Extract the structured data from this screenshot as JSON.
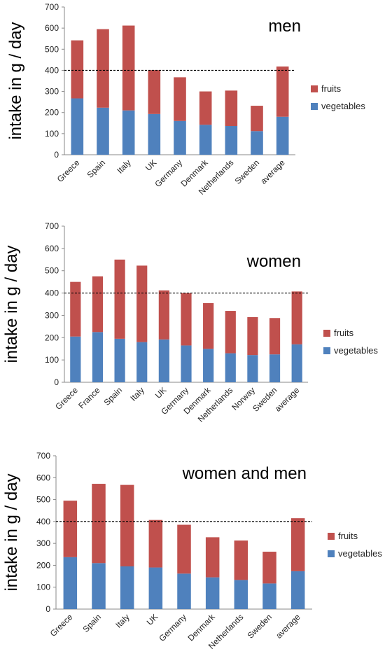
{
  "colors": {
    "fruits": "#C0504D",
    "vegetables": "#4F81BD",
    "axis": "#888888",
    "reference": "#000000"
  },
  "chart_data": [
    {
      "type": "bar",
      "stacked": true,
      "title": "men",
      "ylabel": "intake in g / day",
      "ylim": [
        0,
        700
      ],
      "yticks": [
        0,
        100,
        200,
        300,
        400,
        500,
        600,
        700
      ],
      "reference_line": 400,
      "legend_position": "right",
      "categories": [
        "Greece",
        "Spain",
        "Italy",
        "UK",
        "Germany",
        "Denmark",
        "Netherlands",
        "Sweden",
        "average"
      ],
      "series": [
        {
          "name": "vegetables",
          "values": [
            267,
            223,
            210,
            193,
            160,
            142,
            136,
            112,
            180
          ]
        },
        {
          "name": "fruits",
          "values": [
            275,
            372,
            402,
            208,
            207,
            158,
            168,
            120,
            238
          ]
        }
      ]
    },
    {
      "type": "bar",
      "stacked": true,
      "title": "women",
      "ylabel": "intake in g / day",
      "ylim": [
        0,
        700
      ],
      "yticks": [
        0,
        100,
        200,
        300,
        400,
        500,
        600,
        700
      ],
      "reference_line": 400,
      "legend_position": "right",
      "categories": [
        "Greece",
        "France",
        "Spain",
        "Italy",
        "UK",
        "Germany",
        "Denmark",
        "Netherlands",
        "Norway",
        "Sweden",
        "average"
      ],
      "series": [
        {
          "name": "vegetables",
          "values": [
            205,
            225,
            195,
            180,
            192,
            165,
            150,
            130,
            122,
            125,
            170
          ]
        },
        {
          "name": "fruits",
          "values": [
            245,
            250,
            355,
            343,
            220,
            235,
            205,
            190,
            170,
            163,
            237
          ]
        }
      ]
    },
    {
      "type": "bar",
      "stacked": true,
      "title": "women and men",
      "ylabel": "intake in g / day",
      "ylim": [
        0,
        700
      ],
      "yticks": [
        0,
        100,
        200,
        300,
        400,
        500,
        600,
        700
      ],
      "reference_line": 400,
      "legend_position": "right",
      "categories": [
        "Greece",
        "Spain",
        "Italy",
        "UK",
        "Germany",
        "Denmark",
        "Netherlands",
        "Sweden",
        "average"
      ],
      "series": [
        {
          "name": "vegetables",
          "values": [
            237,
            210,
            195,
            190,
            162,
            145,
            133,
            117,
            173
          ]
        },
        {
          "name": "fruits",
          "values": [
            258,
            362,
            372,
            217,
            223,
            183,
            180,
            145,
            242
          ]
        }
      ]
    }
  ]
}
